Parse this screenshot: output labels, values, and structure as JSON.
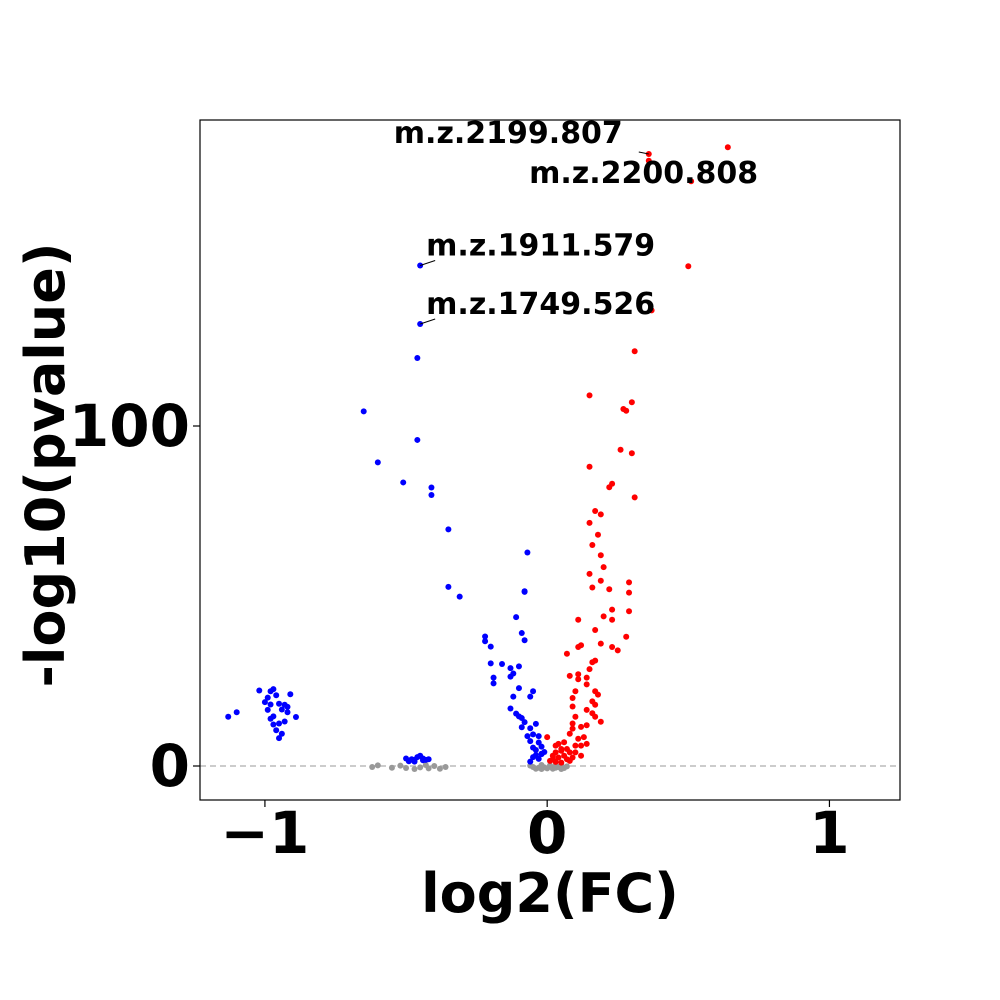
{
  "chart_data": {
    "type": "scatter",
    "title": "",
    "xlabel": "log2(FC)",
    "ylabel": "-log10(pvalue)",
    "xlim": [
      -1.23,
      1.25
    ],
    "ylim": [
      -10,
      190
    ],
    "xticks": [
      -1,
      0,
      1
    ],
    "xtick_labels": [
      "−1",
      "0",
      "1"
    ],
    "yticks": [
      0,
      100
    ],
    "ytick_labels": [
      "0",
      "100"
    ],
    "threshold_line": 0,
    "grid": false,
    "colors": {
      "down": "#0000ff",
      "up": "#ff0000",
      "ns": "#999999",
      "threshold": "#bbbbbb"
    },
    "series": [
      {
        "color": "down",
        "points": [
          [
            -1.13,
            14.5
          ],
          [
            -1.1,
            15.8
          ],
          [
            -1.02,
            22.2
          ],
          [
            -1.0,
            18.8
          ],
          [
            -0.99,
            20.1
          ],
          [
            -0.98,
            22.0
          ],
          [
            -0.98,
            18.1
          ],
          [
            -0.99,
            16.5
          ],
          [
            -0.97,
            14.6
          ],
          [
            -0.98,
            13.9
          ],
          [
            -0.97,
            22.6
          ],
          [
            -0.96,
            20.8
          ],
          [
            -0.95,
            18.3
          ],
          [
            -0.94,
            16.6
          ],
          [
            -0.93,
            18.0
          ],
          [
            -0.92,
            17.4
          ],
          [
            -0.91,
            21.1
          ],
          [
            -0.96,
            10.5
          ],
          [
            -0.95,
            12.5
          ],
          [
            -0.93,
            13.1
          ],
          [
            -0.95,
            8.2
          ],
          [
            -0.94,
            9.5
          ],
          [
            -0.97,
            12.2
          ],
          [
            -0.89,
            14.4
          ],
          [
            -0.92,
            15.8
          ],
          [
            -0.5,
            2.2
          ],
          [
            -0.49,
            1.4
          ],
          [
            -0.48,
            2.0
          ],
          [
            -0.47,
            1.8
          ],
          [
            -0.46,
            2.6
          ],
          [
            -0.45,
            3.0
          ],
          [
            -0.44,
            1.7
          ],
          [
            -0.43,
            1.8
          ],
          [
            -0.42,
            2.0
          ],
          [
            -0.47,
            1.3
          ],
          [
            -0.44,
            2.2
          ],
          [
            -0.65,
            104.3
          ],
          [
            -0.6,
            89.3
          ],
          [
            -0.51,
            83.4
          ],
          [
            -0.46,
            95.9
          ],
          [
            -0.41,
            81.9
          ],
          [
            -0.41,
            79.7
          ],
          [
            -0.35,
            69.6
          ],
          [
            -0.35,
            52.7
          ],
          [
            -0.31,
            49.8
          ],
          [
            -0.46,
            120.0
          ],
          [
            -0.45,
            130.0
          ],
          [
            -0.45,
            147.2
          ],
          [
            -0.22,
            38.1
          ],
          [
            -0.2,
            35.1
          ],
          [
            -0.22,
            36.7
          ],
          [
            -0.2,
            30.2
          ],
          [
            -0.19,
            26.0
          ],
          [
            -0.19,
            24.3
          ],
          [
            -0.16,
            30.0
          ],
          [
            -0.13,
            28.8
          ],
          [
            -0.12,
            20.4
          ],
          [
            -0.11,
            15.4
          ],
          [
            -0.13,
            16.9
          ],
          [
            -0.13,
            26.3
          ],
          [
            -0.12,
            27.2
          ],
          [
            -0.1,
            22.9
          ],
          [
            -0.1,
            14.6
          ],
          [
            -0.09,
            11.4
          ],
          [
            -0.09,
            14.1
          ],
          [
            -0.08,
            12.9
          ],
          [
            -0.1,
            29.3
          ],
          [
            -0.07,
            62.8
          ],
          [
            -0.08,
            51.2
          ],
          [
            -0.08,
            51.4
          ],
          [
            -0.11,
            43.8
          ],
          [
            -0.09,
            39.1
          ],
          [
            -0.08,
            37.0
          ],
          [
            -0.06,
            20.4
          ],
          [
            -0.05,
            22.0
          ],
          [
            -0.06,
            11.1
          ],
          [
            -0.07,
            8.8
          ],
          [
            -0.06,
            7.3
          ],
          [
            -0.05,
            5.4
          ],
          [
            -0.04,
            4.7
          ],
          [
            -0.03,
            6.9
          ],
          [
            -0.02,
            3.6
          ],
          [
            -0.03,
            2.1
          ],
          [
            -0.05,
            2.6
          ],
          [
            -0.06,
            1.3
          ],
          [
            -0.04,
            3.2
          ],
          [
            -0.02,
            3.5
          ],
          [
            -0.04,
            12.4
          ],
          [
            -0.05,
            9.3
          ],
          [
            -0.03,
            8.8
          ],
          [
            -0.02,
            5.7
          ],
          [
            -0.01,
            4.1
          ]
        ]
      },
      {
        "color": "up",
        "points": [
          [
            0.64,
            182.0
          ],
          [
            0.36,
            180.0
          ],
          [
            0.36,
            178.0
          ],
          [
            0.51,
            172.0
          ],
          [
            0.5,
            147.0
          ],
          [
            0.37,
            134.0
          ],
          [
            0.31,
            122.0
          ],
          [
            0.15,
            109.0
          ],
          [
            0.3,
            107.0
          ],
          [
            0.27,
            105.0
          ],
          [
            0.28,
            104.5
          ],
          [
            0.26,
            93.0
          ],
          [
            0.3,
            92.0
          ],
          [
            0.15,
            88.0
          ],
          [
            0.22,
            82.0
          ],
          [
            0.23,
            83.0
          ],
          [
            0.31,
            79.0
          ],
          [
            0.19,
            74.0
          ],
          [
            0.17,
            75.0
          ],
          [
            0.15,
            71.5
          ],
          [
            0.18,
            68.0
          ],
          [
            0.16,
            65.0
          ],
          [
            0.19,
            62.0
          ],
          [
            0.2,
            58.5
          ],
          [
            0.15,
            56.5
          ],
          [
            0.19,
            54.5
          ],
          [
            0.29,
            54.0
          ],
          [
            0.22,
            52.0
          ],
          [
            0.16,
            52.5
          ],
          [
            0.29,
            51.0
          ],
          [
            0.23,
            46.0
          ],
          [
            0.29,
            45.5
          ],
          [
            0.2,
            44.0
          ],
          [
            0.23,
            43.0
          ],
          [
            0.11,
            43.0
          ],
          [
            0.17,
            40.0
          ],
          [
            0.28,
            38.0
          ],
          [
            0.19,
            36.0
          ],
          [
            0.12,
            35.5
          ],
          [
            0.11,
            35.0
          ],
          [
            0.23,
            35.0
          ],
          [
            0.25,
            34.0
          ],
          [
            0.07,
            33.0
          ],
          [
            0.17,
            31.0
          ],
          [
            0.16,
            30.5
          ],
          [
            0.15,
            28.5
          ],
          [
            0.11,
            27.0
          ],
          [
            0.08,
            26.5
          ],
          [
            0.14,
            26.0
          ],
          [
            0.11,
            25.5
          ],
          [
            0.14,
            24.0
          ],
          [
            0.1,
            22.0
          ],
          [
            0.17,
            22.0
          ],
          [
            0.18,
            21.0
          ],
          [
            0.09,
            20.0
          ],
          [
            0.16,
            19.0
          ],
          [
            0.17,
            18.0
          ],
          [
            0.09,
            17.5
          ],
          [
            0.14,
            16.5
          ],
          [
            0.16,
            15.5
          ],
          [
            0.17,
            14.5
          ],
          [
            0.1,
            14.5
          ],
          [
            0.19,
            13.0
          ],
          [
            0.09,
            12.5
          ],
          [
            0.14,
            12.0
          ],
          [
            0.12,
            11.5
          ],
          [
            0.09,
            11.0
          ],
          [
            0.08,
            9.5
          ],
          [
            0.13,
            8.5
          ],
          [
            0.11,
            8.0
          ],
          [
            0.14,
            6.5
          ],
          [
            0.1,
            6.0
          ],
          [
            0.07,
            5.0
          ],
          [
            0.08,
            4.0
          ],
          [
            0.05,
            5.0
          ],
          [
            0.03,
            4.0
          ],
          [
            0.02,
            3.0
          ],
          [
            0.02,
            2.0
          ],
          [
            0.04,
            2.5
          ],
          [
            0.06,
            3.0
          ],
          [
            0.07,
            2.0
          ],
          [
            0.09,
            2.5
          ],
          [
            0.12,
            3.0
          ],
          [
            0.04,
            6.5
          ],
          [
            0.06,
            7.0
          ],
          [
            0.01,
            1.5
          ],
          [
            0.05,
            1.0
          ],
          [
            0.03,
            1.2
          ],
          [
            0.08,
            1.5
          ],
          [
            0.0,
            8.5
          ],
          [
            0.03,
            6.0
          ],
          [
            0.05,
            4.5
          ],
          [
            0.1,
            4.0
          ],
          [
            0.12,
            6.0
          ]
        ]
      },
      {
        "color": "ns",
        "points": [
          [
            -0.62,
            -0.3
          ],
          [
            -0.6,
            0.2
          ],
          [
            -0.55,
            -0.5
          ],
          [
            -0.52,
            0.1
          ],
          [
            -0.5,
            -0.6
          ],
          [
            -0.45,
            -0.4
          ],
          [
            -0.42,
            -0.7
          ],
          [
            -0.4,
            0.0
          ],
          [
            -0.38,
            -0.8
          ],
          [
            -0.36,
            -0.3
          ],
          [
            -0.47,
            -0.9
          ],
          [
            -0.43,
            0.3
          ],
          [
            -0.05,
            -0.3
          ],
          [
            -0.04,
            -0.8
          ],
          [
            -0.03,
            -0.5
          ],
          [
            -0.02,
            -0.9
          ],
          [
            -0.01,
            -0.4
          ],
          [
            0.0,
            -0.7
          ],
          [
            0.01,
            -0.2
          ],
          [
            0.02,
            -0.8
          ],
          [
            0.03,
            -0.5
          ],
          [
            0.04,
            -0.3
          ],
          [
            0.05,
            -0.9
          ],
          [
            0.06,
            -0.6
          ],
          [
            0.07,
            -0.1
          ],
          [
            -0.06,
            0.1
          ],
          [
            0.01,
            0.2
          ],
          [
            0.03,
            0.1
          ],
          [
            0.05,
            0.2
          ],
          [
            -0.02,
            0.3
          ]
        ]
      }
    ],
    "annotations": [
      {
        "label": "m.z.2199.807",
        "x": 0.36,
        "y": 180.0
      },
      {
        "label": "m.z.2200.808",
        "x": 0.51,
        "y": 172.0
      },
      {
        "label": "m.z.1911.579",
        "x": -0.45,
        "y": 147.2
      },
      {
        "label": "m.z.1749.526",
        "x": -0.45,
        "y": 130.0
      }
    ]
  }
}
